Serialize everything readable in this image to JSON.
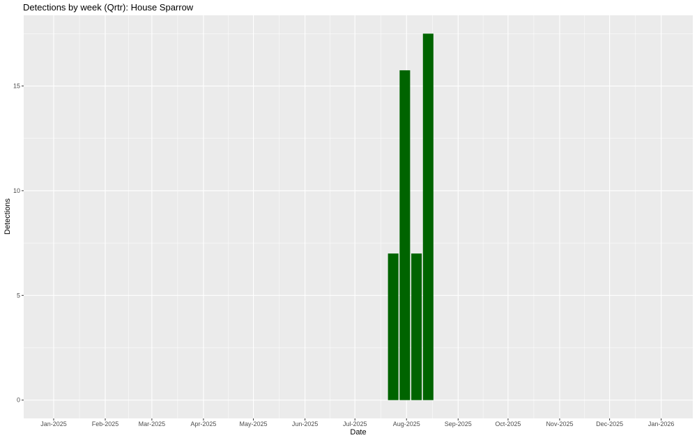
{
  "chart_data": {
    "type": "bar",
    "title": "Detections by week (Qrtr): House Sparrow",
    "x_label": "Date",
    "y_label": "Detections",
    "x": [
      "2025-07-24",
      "2025-07-31",
      "2025-08-07",
      "2025-08-14"
    ],
    "values": [
      7,
      15.75,
      7,
      17.5
    ],
    "color": "#006400",
    "xlim": [
      "2024-12-14",
      "2026-01-20"
    ],
    "xticks": [
      {
        "value": "2025-01-01",
        "label": "Jan-2025"
      },
      {
        "value": "2025-02-01",
        "label": "Feb-2025"
      },
      {
        "value": "2025-03-01",
        "label": "Mar-2025"
      },
      {
        "value": "2025-04-01",
        "label": "Apr-2025"
      },
      {
        "value": "2025-05-01",
        "label": "May-2025"
      },
      {
        "value": "2025-06-01",
        "label": "Jun-2025"
      },
      {
        "value": "2025-07-01",
        "label": "Jul-2025"
      },
      {
        "value": "2025-08-01",
        "label": "Aug-2025"
      },
      {
        "value": "2025-09-01",
        "label": "Sep-2025"
      },
      {
        "value": "2025-10-01",
        "label": "Oct-2025"
      },
      {
        "value": "2025-11-01",
        "label": "Nov-2025"
      },
      {
        "value": "2025-12-01",
        "label": "Dec-2025"
      },
      {
        "value": "2026-01-01",
        "label": "Jan-2026"
      }
    ],
    "ylim": [
      -0.875,
      18.375
    ],
    "yticks": [
      0,
      5,
      10,
      15
    ],
    "grid": true
  }
}
